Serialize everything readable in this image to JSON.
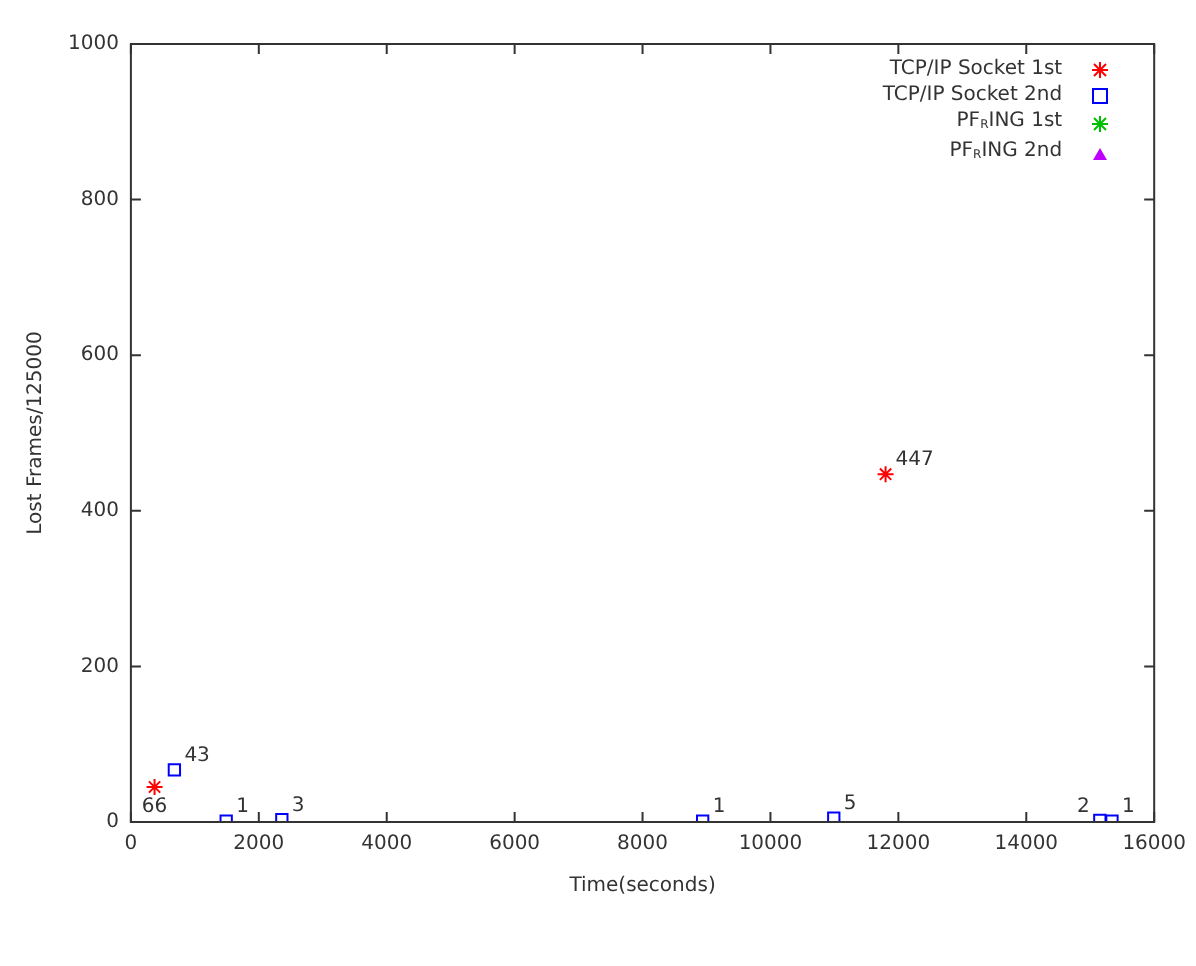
{
  "chart_data": {
    "type": "scatter",
    "xlabel": "Time(seconds)",
    "ylabel": "Lost Frames/125000",
    "xlim": [
      0,
      16000
    ],
    "xticks": [
      0,
      2000,
      4000,
      6000,
      8000,
      10000,
      12000,
      14000,
      16000
    ],
    "ylim": [
      0,
      1000
    ],
    "yticks": [
      0,
      200,
      400,
      600,
      800,
      1000
    ],
    "grid": false,
    "legend": "top right",
    "series": [
      {
        "name": "TCP/IP Socket 1st",
        "color": "#ff0000",
        "marker": "cross",
        "x": [
          370,
          11800
        ],
        "values": [
          45,
          447
        ]
      },
      {
        "name": "TCP/IP Socket 2nd",
        "color": "#0000ff",
        "marker": "square",
        "x": [
          680,
          1490,
          2360,
          8940,
          10990,
          15150,
          15340
        ],
        "values": [
          67,
          1,
          3,
          1,
          5,
          2,
          1
        ]
      },
      {
        "name": "PF$_{R}$ING 1st",
        "color": "#00c000",
        "marker": "cross"
      },
      {
        "name": "PF$_{R}$ING 2nd",
        "color": "#c000ff",
        "marker": "triangle"
      }
    ],
    "annotations": [
      {
        "text": "66",
        "x": 370,
        "y": 45
      },
      {
        "text": "43",
        "x": 680,
        "y": 67
      },
      {
        "text": "447",
        "x": 11800,
        "y": 447
      },
      {
        "text": "1",
        "x": 1490,
        "y": 1
      },
      {
        "text": "3",
        "x": 2360,
        "y": 3
      },
      {
        "text": "1",
        "x": 8940,
        "y": 1
      },
      {
        "text": "5",
        "x": 10990,
        "y": 5
      },
      {
        "text": "2",
        "x": 15150,
        "y": 2
      },
      {
        "text": "1",
        "x": 15340,
        "y": 1
      }
    ]
  }
}
